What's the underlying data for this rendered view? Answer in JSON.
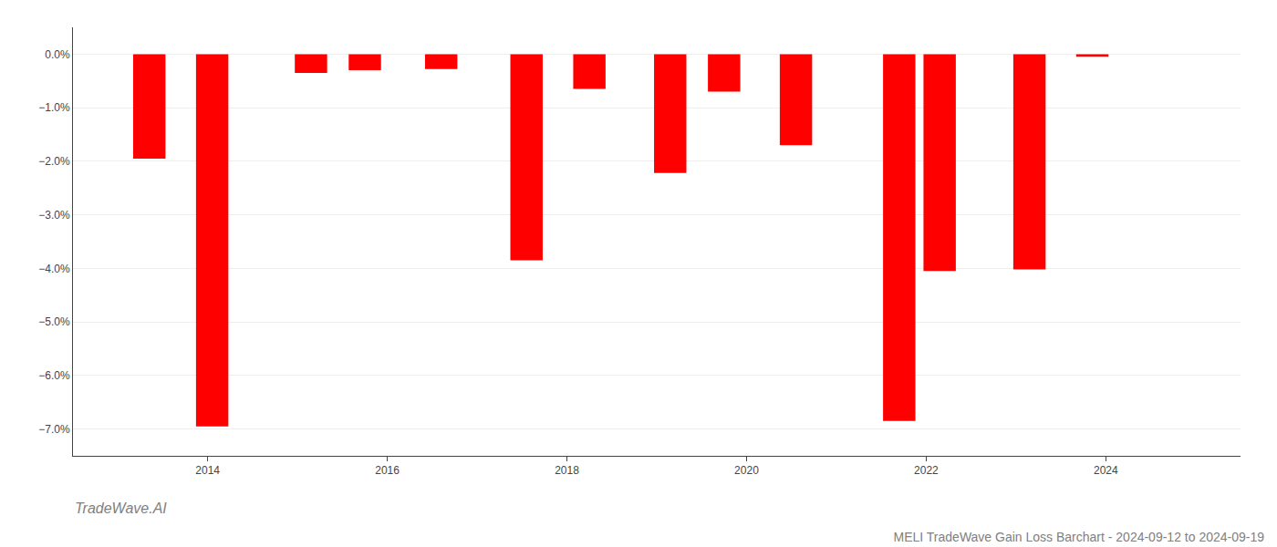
{
  "chart_data": {
    "type": "bar",
    "title": "MELI TradeWave Gain Loss Barchart - 2024-09-12 to 2024-09-19",
    "annotations": [
      "TradeWave.AI"
    ],
    "x": [
      2013.35,
      2014.05,
      2015.15,
      2015.75,
      2016.6,
      2017.55,
      2018.25,
      2019.15,
      2019.75,
      2020.55,
      2021.7,
      2022.15,
      2023.15,
      2023.85
    ],
    "values": [
      -1.95,
      -6.95,
      -0.35,
      -0.3,
      -0.28,
      -3.85,
      -0.65,
      -2.22,
      -0.7,
      -1.7,
      -6.85,
      -4.05,
      -4.02,
      -0.05
    ],
    "color": "#ff0000",
    "xlim": [
      2012.5,
      2025.5
    ],
    "xticks": [
      2014,
      2016,
      2018,
      2020,
      2022,
      2024
    ],
    "ylim": [
      -7.5,
      0.5
    ],
    "yticks": [
      {
        "value": 0.0,
        "label": "0.0%"
      },
      {
        "value": -1.0,
        "label": "−1.0%"
      },
      {
        "value": -2.0,
        "label": "−2.0%"
      },
      {
        "value": -3.0,
        "label": "−3.0%"
      },
      {
        "value": -4.0,
        "label": "−4.0%"
      },
      {
        "value": -5.0,
        "label": "−5.0%"
      },
      {
        "value": -6.0,
        "label": "−6.0%"
      },
      {
        "value": -7.0,
        "label": "−7.0%"
      }
    ],
    "grid": true
  }
}
